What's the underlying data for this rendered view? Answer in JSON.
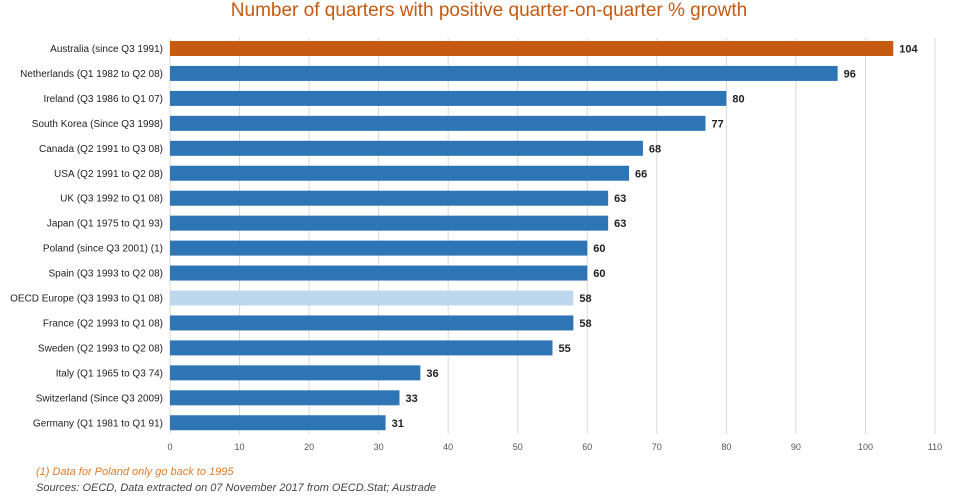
{
  "chart_data": {
    "type": "bar",
    "orientation": "horizontal",
    "title": "Number of quarters with positive quarter-on-quarter % growth",
    "categories": [
      "Australia (since Q3 1991)",
      "Netherlands (Q1 1982 to Q2 08)",
      "Ireland (Q3 1986 to Q1 07)",
      "South Korea (Since Q3 1998)",
      "Canada (Q2 1991 to Q3 08)",
      "USA (Q2 1991 to Q2 08)",
      "UK (Q3 1992 to Q1 08)",
      "Japan (Q1 1975 to Q1 93)",
      "Poland (since Q3 2001) (1)",
      "Spain (Q3 1993 to Q2 08)",
      "OECD Europe (Q3 1993 to Q1 08)",
      "France (Q2 1993 to Q1 08)",
      "Sweden (Q2 1993 to Q2 08)",
      "Italy (Q1 1965 to Q3 74)",
      "Switzerland (Since Q3 2009)",
      "Germany (Q1 1981 to Q1 91)"
    ],
    "values": [
      104,
      96,
      80,
      77,
      68,
      66,
      63,
      63,
      60,
      60,
      58,
      58,
      55,
      36,
      33,
      31
    ],
    "colors": [
      "#c55a11",
      "#2e75b6",
      "#2e75b6",
      "#2e75b6",
      "#2e75b6",
      "#2e75b6",
      "#2e75b6",
      "#2e75b6",
      "#2e75b6",
      "#2e75b6",
      "#bdd7ee",
      "#2e75b6",
      "#2e75b6",
      "#2e75b6",
      "#2e75b6",
      "#2e75b6"
    ],
    "xlim": [
      0,
      110
    ],
    "xticks": [
      0,
      10,
      20,
      30,
      40,
      50,
      60,
      70,
      80,
      90,
      100,
      110
    ],
    "grid": true,
    "data_labels": true
  },
  "notes": {
    "footnote": "(1) Data for Poland only go back to 1995",
    "source": "Sources: OECD, Data extracted on 07 November 2017 from OECD.Stat; Austrade"
  }
}
